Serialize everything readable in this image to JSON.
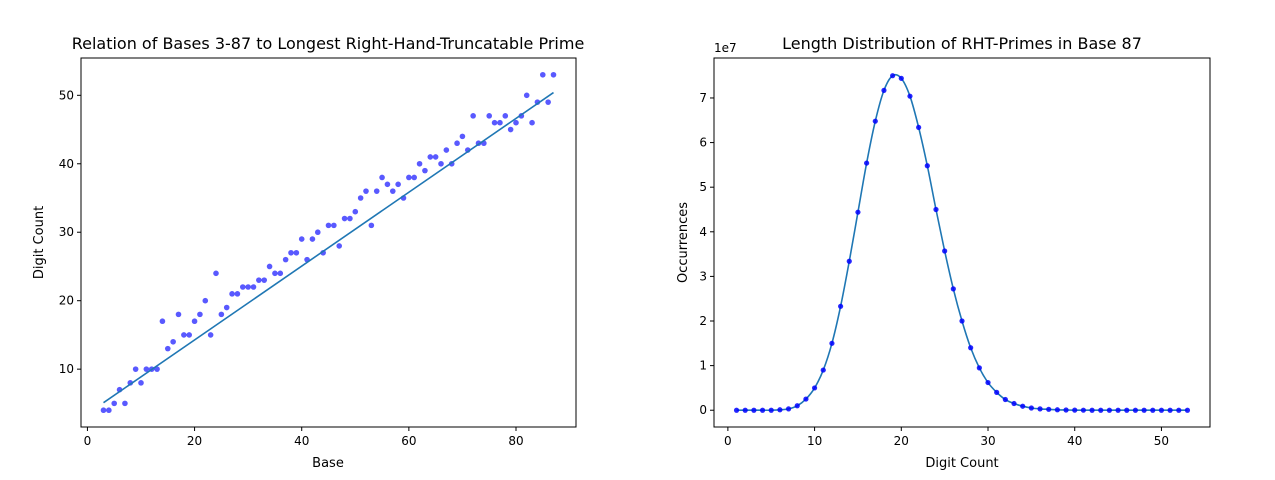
{
  "chart_data": [
    {
      "type": "scatter",
      "title": "Relation of Bases 3-87 to Longest Right-Hand-Truncatable Prime",
      "xlabel": "Base",
      "ylabel": "Digit Count",
      "xlim": [
        -1.2,
        91.2
      ],
      "ylim": [
        1.55,
        55.45
      ],
      "xticks": [
        0,
        20,
        40,
        60,
        80
      ],
      "yticks": [
        10,
        20,
        30,
        40,
        50
      ],
      "grid": false,
      "scatter_color": "#0000ff",
      "line_color": "#1f77b4",
      "x": [
        3,
        4,
        5,
        6,
        7,
        8,
        9,
        10,
        11,
        12,
        13,
        14,
        15,
        16,
        17,
        18,
        19,
        20,
        21,
        22,
        23,
        24,
        25,
        26,
        27,
        28,
        29,
        30,
        31,
        32,
        33,
        34,
        35,
        36,
        37,
        38,
        39,
        40,
        41,
        42,
        43,
        44,
        45,
        46,
        47,
        48,
        49,
        50,
        51,
        52,
        53,
        54,
        55,
        56,
        57,
        58,
        59,
        60,
        61,
        62,
        63,
        64,
        65,
        66,
        67,
        68,
        69,
        70,
        71,
        72,
        73,
        74,
        75,
        76,
        77,
        78,
        79,
        80,
        81,
        82,
        83,
        84,
        85,
        86,
        87
      ],
      "y": [
        4,
        4,
        5,
        7,
        5,
        8,
        10,
        8,
        10,
        10,
        10,
        17,
        13,
        14,
        18,
        15,
        15,
        17,
        18,
        20,
        15,
        24,
        18,
        19,
        21,
        21,
        22,
        22,
        22,
        23,
        23,
        25,
        24,
        24,
        26,
        27,
        27,
        29,
        26,
        29,
        30,
        27,
        31,
        31,
        28,
        32,
        32,
        33,
        35,
        36,
        31,
        36,
        38,
        37,
        36,
        37,
        35,
        38,
        38,
        40,
        39,
        41,
        41,
        40,
        42,
        40,
        43,
        44,
        42,
        47,
        43,
        43,
        47,
        46,
        46,
        47,
        45,
        46,
        47,
        50,
        46,
        49,
        53,
        49,
        53
      ],
      "fit_line": {
        "x": [
          3,
          87
        ],
        "y": [
          5.1,
          50.4
        ]
      }
    },
    {
      "type": "line",
      "title": "Length Distribution of RHT-Primes in Base 87",
      "xlabel": "Digit Count",
      "ylabel": "Occurrences",
      "y_scale_label": "1e7",
      "xlim": [
        -1.6,
        55.6
      ],
      "ylim": [
        -3760000,
        78960000
      ],
      "xticks": [
        0,
        10,
        20,
        30,
        40,
        50
      ],
      "yticks": [
        0,
        10000000,
        20000000,
        30000000,
        40000000,
        50000000,
        60000000,
        70000000
      ],
      "ytick_labels": [
        "0",
        "1",
        "2",
        "3",
        "4",
        "5",
        "6",
        "7"
      ],
      "grid": false,
      "marker_color": "#0000ff",
      "line_color": "#1f77b4",
      "x": [
        1,
        2,
        3,
        4,
        5,
        6,
        7,
        8,
        9,
        10,
        11,
        12,
        13,
        14,
        15,
        16,
        17,
        18,
        19,
        20,
        21,
        22,
        23,
        24,
        25,
        26,
        27,
        28,
        29,
        30,
        31,
        32,
        33,
        34,
        35,
        36,
        37,
        38,
        39,
        40,
        41,
        42,
        43,
        44,
        45,
        46,
        47,
        48,
        49,
        50,
        51,
        52,
        53
      ],
      "y": [
        0,
        0,
        0,
        0,
        0,
        100000,
        300000,
        1000000,
        2500000,
        5000000,
        9000000,
        15000000,
        23300000,
        33400000,
        44400000,
        55400000,
        64800000,
        71700000,
        75000000,
        74400000,
        70400000,
        63400000,
        54800000,
        45000000,
        35700000,
        27200000,
        20000000,
        14000000,
        9500000,
        6200000,
        4000000,
        2400000,
        1500000,
        900000,
        500000,
        300000,
        200000,
        100000,
        50000,
        20000,
        10000,
        0,
        0,
        0,
        0,
        0,
        0,
        0,
        0,
        0,
        0,
        0,
        0
      ]
    }
  ]
}
